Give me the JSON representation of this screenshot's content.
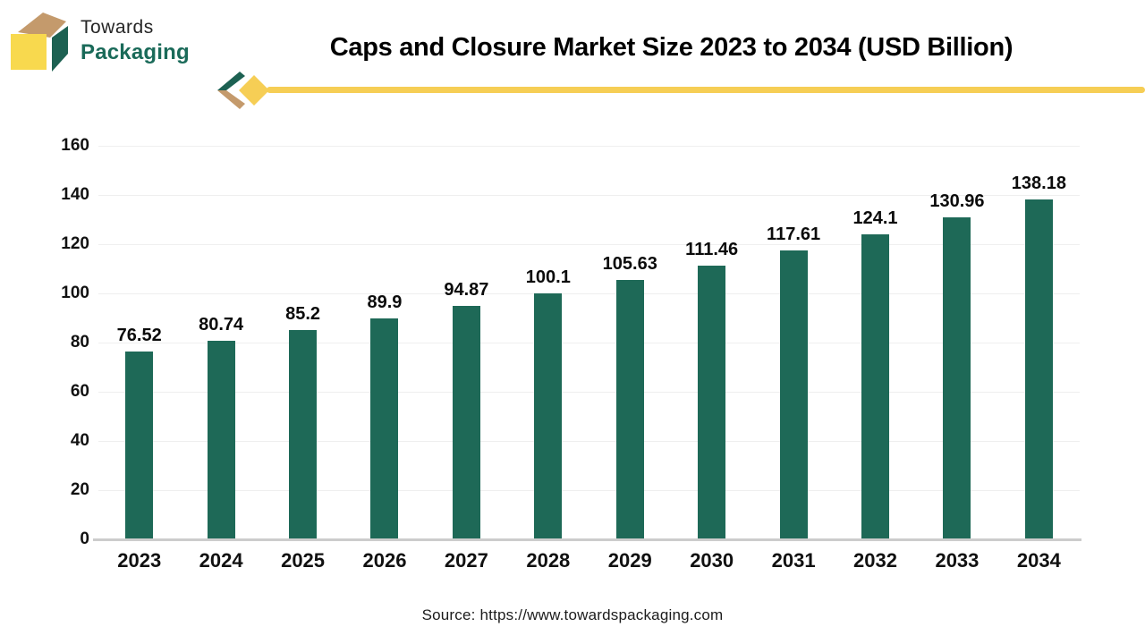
{
  "logo": {
    "line1": "Towards",
    "line2": "Packaging"
  },
  "header": {
    "title": "Caps and Closure Market Size 2023 to 2034 (USD Billion)"
  },
  "footer": {
    "source": "Source: https://www.towardspackaging.com"
  },
  "colors": {
    "bar": "#1e6957",
    "accent_yellow": "#f6ce55",
    "logo_tan": "#c49a6c",
    "logo_green": "#1d6152",
    "logo_yellow": "#f8d94e",
    "gridline": "#efefef",
    "baseline": "#cccccc"
  },
  "chart_data": {
    "type": "bar",
    "title": "Caps and Closure Market Size 2023 to 2034 (USD Billion)",
    "categories": [
      "2023",
      "2024",
      "2025",
      "2026",
      "2027",
      "2028",
      "2029",
      "2030",
      "2031",
      "2032",
      "2033",
      "2034"
    ],
    "values": [
      76.52,
      80.74,
      85.2,
      89.9,
      94.87,
      100.1,
      105.63,
      111.46,
      117.61,
      124.1,
      130.96,
      138.18
    ],
    "value_labels": [
      "76.52",
      "80.74",
      "85.2",
      "89.9",
      "94.87",
      "100.1",
      "105.63",
      "111.46",
      "117.61",
      "124.1",
      "130.96",
      "138.18"
    ],
    "xlabel": "",
    "ylabel": "",
    "ylim": [
      0,
      160
    ],
    "ytick_step": 20,
    "grid": true,
    "legend": "none"
  }
}
